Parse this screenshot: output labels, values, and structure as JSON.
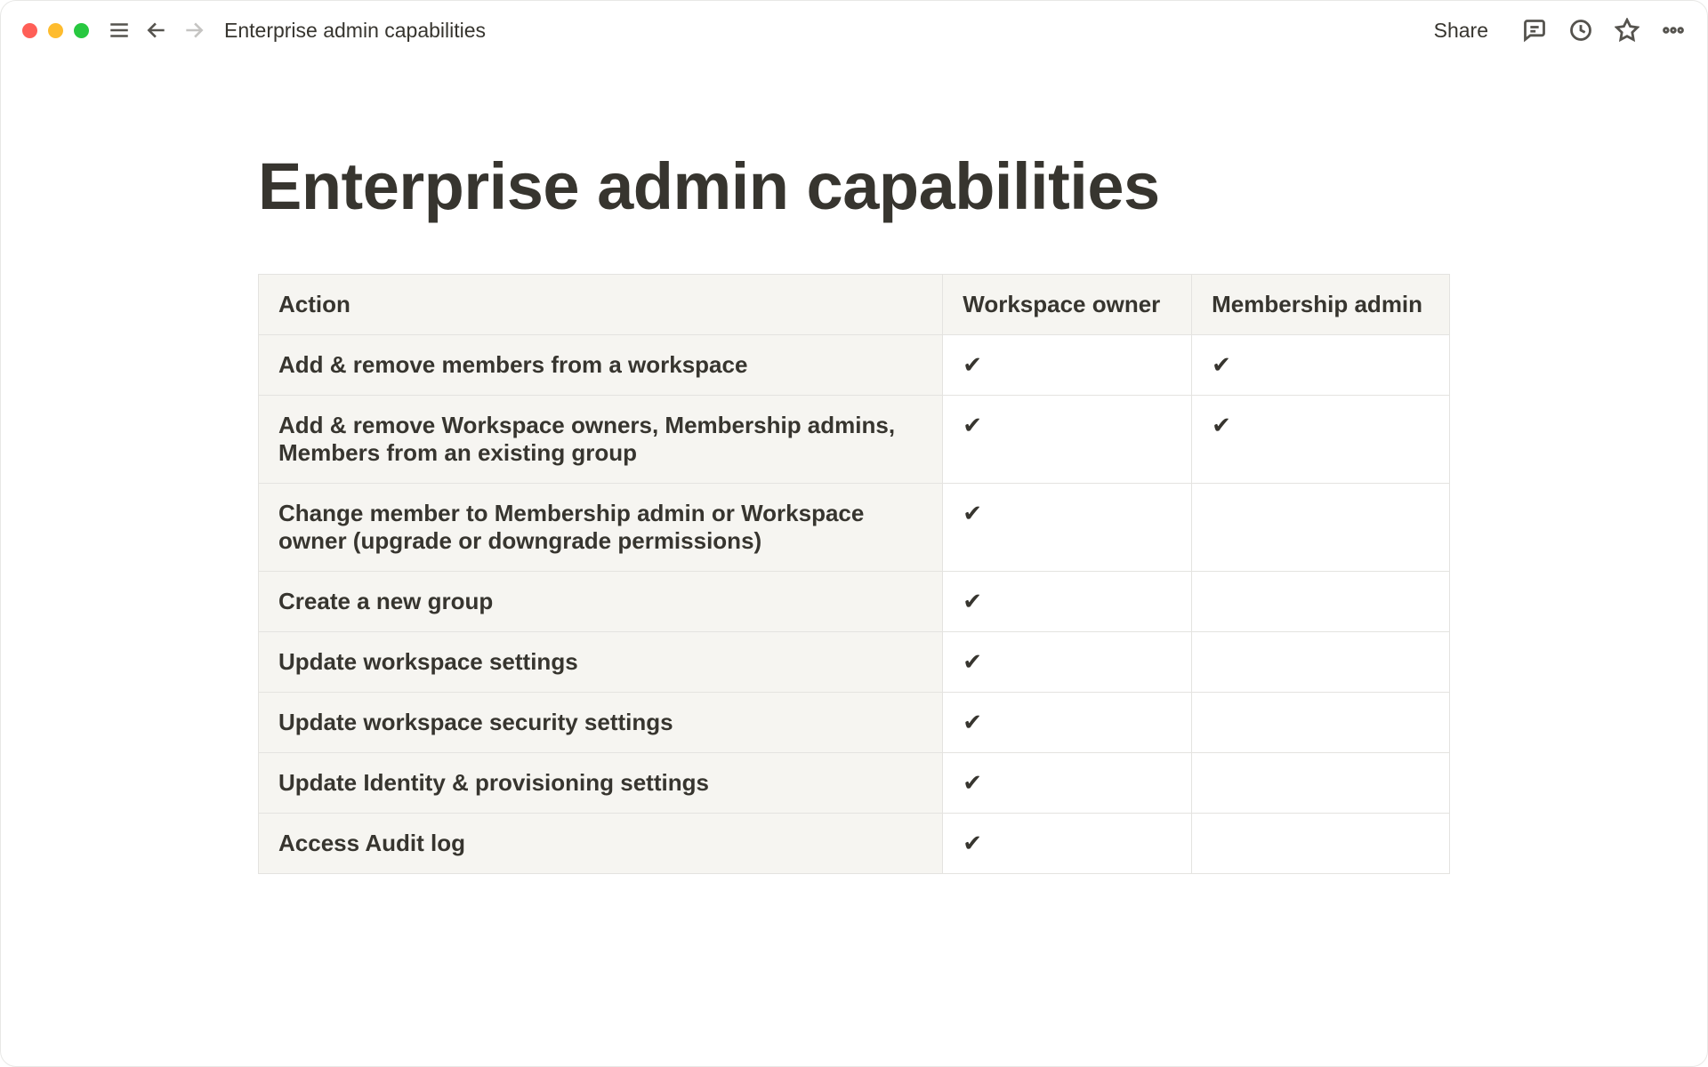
{
  "breadcrumb": "Enterprise admin capabilities",
  "share_label": "Share",
  "page_title": "Enterprise admin capabilities",
  "check_glyph": "✔",
  "table": {
    "columns": [
      "Action",
      "Workspace owner",
      "Membership admin"
    ],
    "rows": [
      {
        "action": "Add & remove members from a workspace",
        "owner": true,
        "admin": true
      },
      {
        "action": "Add & remove Workspace owners, Membership admins, Members from an existing group",
        "owner": true,
        "admin": true
      },
      {
        "action": "Change member to Membership admin or Workspace owner (upgrade or downgrade permissions)",
        "owner": true,
        "admin": false
      },
      {
        "action": "Create a new group",
        "owner": true,
        "admin": false
      },
      {
        "action": "Update workspace settings",
        "owner": true,
        "admin": false
      },
      {
        "action": "Update workspace security settings",
        "owner": true,
        "admin": false
      },
      {
        "action": "Update Identity & provisioning settings",
        "owner": true,
        "admin": false
      },
      {
        "action": "Access Audit log",
        "owner": true,
        "admin": false
      }
    ]
  }
}
